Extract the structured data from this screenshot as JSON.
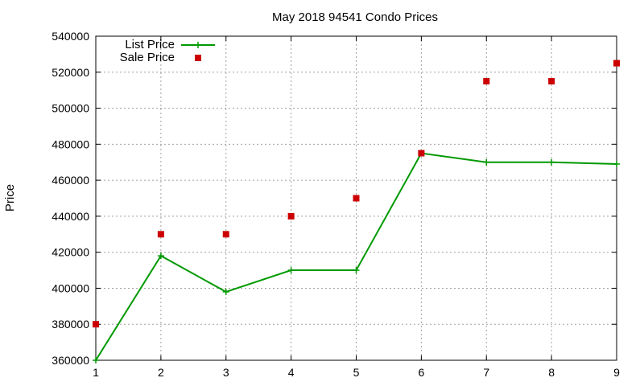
{
  "chart_data": {
    "type": "line",
    "title": "May 2018 94541 Condo Prices",
    "xlabel": "",
    "ylabel": "Price",
    "x": [
      1,
      2,
      3,
      4,
      5,
      6,
      7,
      8,
      9
    ],
    "xlim": [
      1,
      9
    ],
    "ylim": [
      360000,
      540000
    ],
    "xticks": [
      "1",
      "2",
      "3",
      "4",
      "5",
      "6",
      "7",
      "8",
      "9"
    ],
    "yticks": [
      "360000",
      "380000",
      "400000",
      "420000",
      "440000",
      "460000",
      "480000",
      "500000",
      "520000",
      "540000"
    ],
    "grid": true,
    "legend_position": "top-left",
    "series": [
      {
        "name": "List Price",
        "style": "line-with-plus-markers",
        "color": "#009900",
        "values": [
          360000,
          418000,
          398000,
          410000,
          410000,
          475000,
          470000,
          470000,
          469000
        ]
      },
      {
        "name": "Sale Price",
        "style": "square-markers",
        "color": "#cc0000",
        "values": [
          380000,
          430000,
          430000,
          440000,
          450000,
          475000,
          515000,
          515000,
          525000
        ]
      }
    ]
  }
}
